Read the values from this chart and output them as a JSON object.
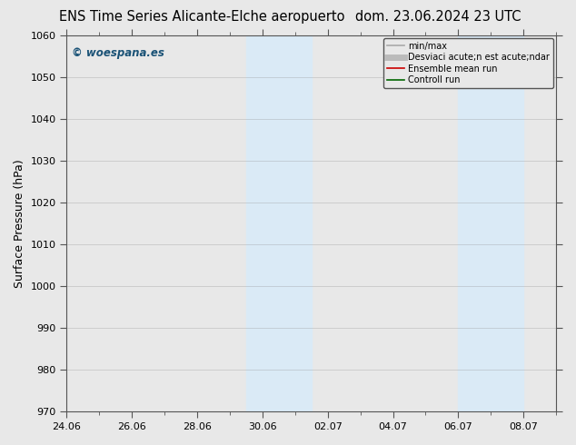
{
  "title_left": "ENS Time Series Alicante-Elche aeropuerto",
  "title_right": "dom. 23.06.2024 23 UTC",
  "ylabel": "Surface Pressure (hPa)",
  "ylim": [
    970,
    1060
  ],
  "yticks": [
    970,
    980,
    990,
    1000,
    1010,
    1020,
    1030,
    1040,
    1050,
    1060
  ],
  "xtick_labels": [
    "24.06",
    "26.06",
    "28.06",
    "30.06",
    "02.07",
    "04.07",
    "06.07",
    "08.07"
  ],
  "xtick_positions": [
    0,
    2,
    4,
    6,
    8,
    10,
    12,
    14
  ],
  "shaded_regions": [
    {
      "x_start": 5.5,
      "x_end": 6.5,
      "color": "#daeaf6"
    },
    {
      "x_start": 6.5,
      "x_end": 7.5,
      "color": "#daeaf6"
    },
    {
      "x_start": 12.0,
      "x_end": 13.0,
      "color": "#daeaf6"
    },
    {
      "x_start": 13.0,
      "x_end": 14.0,
      "color": "#daeaf6"
    }
  ],
  "watermark": "© woespana.es",
  "watermark_color": "#1a5276",
  "legend_items": [
    {
      "label": "min/max",
      "color": "#aaaaaa",
      "lw": 1.2
    },
    {
      "label": "Desviaci acute;n est acute;ndar",
      "color": "#bbbbbb",
      "lw": 5
    },
    {
      "label": "Ensemble mean run",
      "color": "#cc0000",
      "lw": 1.2
    },
    {
      "label": "Controll run",
      "color": "#006600",
      "lw": 1.2
    }
  ],
  "background_color": "#e8e8e8",
  "plot_bg_color": "#e8e8e8",
  "spine_color": "#555555",
  "grid_color": "#888888",
  "title_fontsize": 10.5,
  "tick_fontsize": 8,
  "ylabel_fontsize": 9
}
